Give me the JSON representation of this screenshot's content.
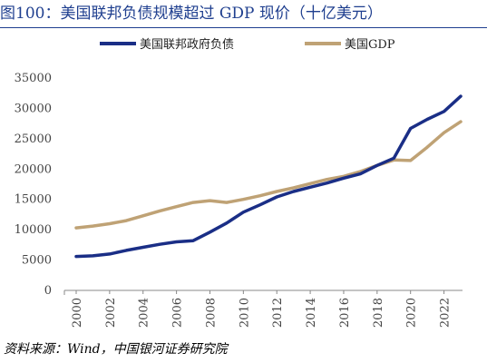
{
  "title": "图100：美国联邦负债规模超过 GDP 现价（十亿美元）",
  "source": "资料来源：Wind，中国银河证券研究院",
  "chart_data": {
    "type": "line",
    "title": "图100：美国联邦负债规模超过 GDP 现价（十亿美元）",
    "xlabel": "",
    "ylabel": "",
    "xlim": [
      2000,
      2023
    ],
    "ylim": [
      0,
      35000
    ],
    "x_ticks": [
      "2000",
      "2002",
      "2004",
      "2006",
      "2008",
      "2010",
      "2012",
      "2014",
      "2016",
      "2018",
      "2020",
      "2022"
    ],
    "y_ticks": [
      "0",
      "5000",
      "10000",
      "15000",
      "20000",
      "25000",
      "30000",
      "35000"
    ],
    "grid": false,
    "legend_position": "top",
    "x": [
      2000,
      2001,
      2002,
      2003,
      2004,
      2005,
      2006,
      2007,
      2008,
      2009,
      2010,
      2011,
      2012,
      2013,
      2014,
      2015,
      2016,
      2017,
      2018,
      2019,
      2020,
      2021,
      2022,
      2023
    ],
    "series": [
      {
        "name": "美国联邦政府负债",
        "color": "#1a2e86",
        "values": [
          5600,
          5700,
          6000,
          6600,
          7100,
          7600,
          8000,
          8200,
          9600,
          11100,
          12900,
          14100,
          15400,
          16300,
          17000,
          17700,
          18500,
          19200,
          20600,
          21800,
          26700,
          28200,
          29500,
          32000
        ]
      },
      {
        "name": "美国GDP",
        "color": "#bfa275",
        "values": [
          10300,
          10600,
          11000,
          11500,
          12300,
          13100,
          13800,
          14500,
          14800,
          14500,
          15000,
          15600,
          16300,
          16900,
          17600,
          18300,
          18800,
          19600,
          20600,
          21500,
          21400,
          23600,
          26000,
          27800
        ]
      }
    ]
  }
}
